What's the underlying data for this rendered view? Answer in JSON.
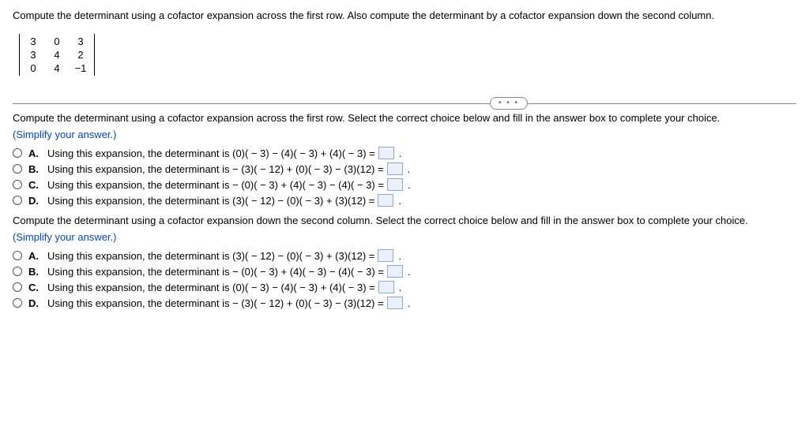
{
  "problem": {
    "statement": "Compute the determinant using a cofactor expansion across the first row. Also compute the determinant by a cofactor expansion down the second column.",
    "matrix": {
      "rows": [
        [
          "3",
          "0",
          "3"
        ],
        [
          "3",
          "4",
          "2"
        ],
        [
          "0",
          "4",
          "−1"
        ]
      ]
    }
  },
  "dots": "• • •",
  "part1": {
    "prompt": "Compute the determinant using a cofactor expansion across the first row. Select the correct choice below and fill in the answer box to complete your choice.",
    "hint": "(Simplify your answer.)",
    "choices": [
      {
        "letter": "A.",
        "text": "Using this expansion, the determinant is (0)( − 3) − (4)( − 3) + (4)( − 3) ="
      },
      {
        "letter": "B.",
        "text": "Using this expansion, the determinant is  − (3)( − 12) + (0)( − 3) − (3)(12) ="
      },
      {
        "letter": "C.",
        "text": "Using this expansion, the determinant is  − (0)( − 3) + (4)( − 3) − (4)( − 3) ="
      },
      {
        "letter": "D.",
        "text": "Using this expansion, the determinant is (3)( − 12) − (0)( − 3) + (3)(12) ="
      }
    ]
  },
  "part2": {
    "prompt": "Compute the determinant using a cofactor expansion down the second column. Select the correct choice below and fill in the answer box to complete your choice.",
    "hint": "(Simplify your answer.)",
    "choices": [
      {
        "letter": "A.",
        "text": "Using this expansion, the determinant is (3)( − 12) − (0)( − 3) + (3)(12) ="
      },
      {
        "letter": "B.",
        "text": "Using this expansion, the determinant is  − (0)( − 3) + (4)( − 3) − (4)( − 3) ="
      },
      {
        "letter": "C.",
        "text": "Using this expansion, the determinant is (0)( − 3) − (4)( − 3) + (4)( − 3) ="
      },
      {
        "letter": "D.",
        "text": "Using this expansion, the determinant is  − (3)( − 12) + (0)( − 3) − (3)(12) ="
      }
    ]
  },
  "colors": {
    "hint": "#0046c8",
    "answer_box_border": "#8aa9d6",
    "answer_box_fill": "#eaf1fb"
  }
}
